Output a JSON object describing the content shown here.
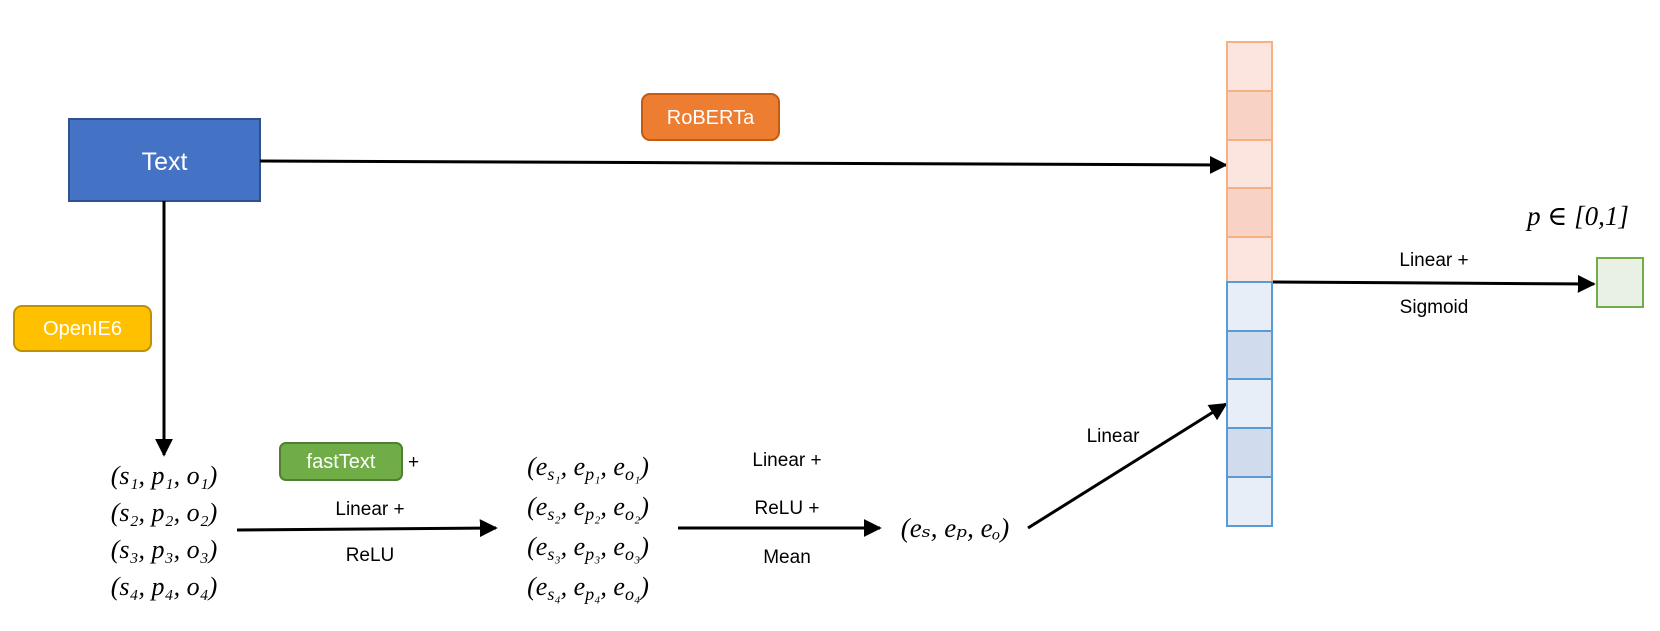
{
  "nodes": {
    "text": "Text",
    "roberta": "RoBERTa",
    "openie": "OpenIE6",
    "fasttext": "fastText",
    "fasttext_plus": "+"
  },
  "labels": {
    "stage1_line1": "Linear +",
    "stage1_line2": "ReLU",
    "stage2_line1": "Linear +",
    "stage2_line2": "ReLU +",
    "stage2_line3": "Mean",
    "proj": "Linear",
    "out_line1": "Linear +",
    "out_line2": "Sigmoid"
  },
  "math": {
    "triples": [
      "(s₁, p₁, o₁)",
      "(s₂, p₂, o₂)",
      "(s₃, p₃, o₃)",
      "(s₄, p₄, o₄)"
    ],
    "embedded_triples": [
      "(e_{s₁}, e_{p₁}, e_{o₁})",
      "(e_{s₂}, e_{p₂}, e_{o₂})",
      "(e_{s₃}, e_{p₃}, e_{o₃})",
      "(e_{s₄}, e_{p₄}, e_{o₄})"
    ],
    "pooled": "(eₛ, eₚ, eₒ)",
    "output": "p ∈ [0,1]"
  },
  "colors": {
    "text_box": "#4472c4",
    "roberta": "#ed7d31",
    "openie": "#ffc000",
    "fasttext": "#70ad47",
    "orange_light": "#fbe5de",
    "orange_mid": "#f8d3c5",
    "blue_light": "#e7eef8",
    "blue_mid": "#d0dcee",
    "output_box": "#e9f0e4"
  }
}
